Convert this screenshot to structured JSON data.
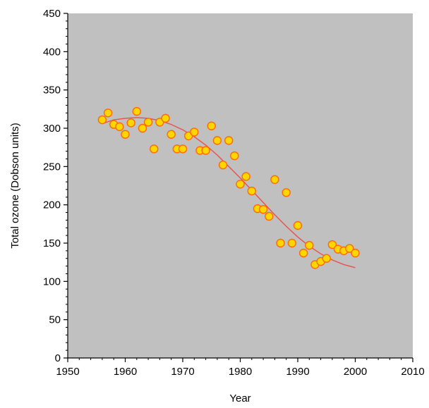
{
  "chart_data": {
    "type": "scatter",
    "title": "",
    "xlabel": "Year",
    "ylabel": "Total ozone (Dobson units)",
    "xlim": [
      1950,
      2010
    ],
    "ylim": [
      0,
      450
    ],
    "x_ticks": [
      1950,
      1960,
      1970,
      1980,
      1990,
      2000,
      2010
    ],
    "y_ticks": [
      0,
      50,
      100,
      150,
      200,
      250,
      300,
      350,
      400,
      450
    ],
    "x_tick_labels": [
      "1950",
      "1960",
      "1970",
      "1980",
      "1990",
      "2000",
      "2010"
    ],
    "y_tick_labels": [
      "0",
      "50",
      "100",
      "150",
      "200",
      "250",
      "300",
      "350",
      "400",
      "450"
    ],
    "grid": false,
    "legend": "none",
    "colors": {
      "plot_background": "#c0c0c0",
      "point_fill": "#ffd700",
      "point_stroke": "#ff6a00",
      "trend_line": "#e8504a",
      "axis": "#000000"
    },
    "series": [
      {
        "type": "scatter",
        "x": [
          1956,
          1957,
          1958,
          1959,
          1960,
          1961,
          1962,
          1963,
          1964,
          1965,
          1966,
          1967,
          1968,
          1969,
          1970,
          1971,
          1972,
          1973,
          1974,
          1975,
          1976,
          1977,
          1978,
          1979,
          1980,
          1981,
          1982,
          1983,
          1984,
          1985,
          1986,
          1987,
          1988,
          1989,
          1990,
          1991,
          1992,
          1993,
          1994,
          1995,
          1996,
          1997,
          1998,
          1999,
          2000
        ],
        "y": [
          311,
          320,
          305,
          302,
          292,
          307,
          322,
          300,
          308,
          273,
          308,
          313,
          292,
          273,
          273,
          290,
          295,
          271,
          271,
          303,
          284,
          252,
          284,
          264,
          227,
          237,
          218,
          195,
          194,
          185,
          233,
          150,
          216,
          150,
          173,
          137,
          147,
          122,
          126,
          130,
          148,
          142,
          140,
          143,
          137
        ]
      },
      {
        "type": "line",
        "x": [
          1956,
          1958,
          1960,
          1962,
          1964,
          1966,
          1968,
          1970,
          1972,
          1974,
          1976,
          1978,
          1980,
          1982,
          1984,
          1986,
          1988,
          1990,
          1992,
          1994,
          1996,
          1998,
          2000
        ],
        "y": [
          306,
          311,
          313,
          314,
          313,
          310,
          305,
          298,
          289,
          278,
          265,
          250,
          235,
          219,
          203,
          187,
          172,
          158,
          146,
          136,
          128,
          122,
          118
        ]
      }
    ]
  }
}
